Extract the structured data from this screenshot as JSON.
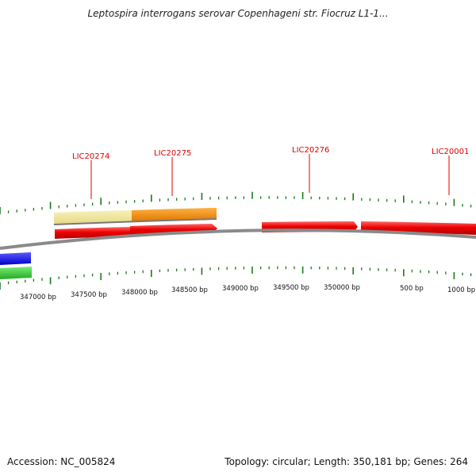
{
  "title": "Leptospira interrogans serovar Copenhageni str. Fiocruz L1-1...",
  "gene_labels": [
    {
      "name": "LIC20274"
    },
    {
      "name": "LIC20275"
    },
    {
      "name": "LIC20276"
    },
    {
      "name": "LIC20001"
    }
  ],
  "position_labels": [
    "347000 bp",
    "347500 bp",
    "348000 bp",
    "348500 bp",
    "349000 bp",
    "349500 bp",
    "350000 bp",
    "500 bp",
    "1000 bp"
  ],
  "footer": {
    "accession": "Accession: NC_005824",
    "topology": "Topology: circular; Length: 350,181 bp; Genes: 264"
  },
  "colors": {
    "gene_red": "#ee0000",
    "gc_light": "#eee49a",
    "gc_orange": "#ff8c00",
    "skew_blue": "#1a1aff",
    "skew_green": "#33cc33",
    "tick_green": "#1a7a1a",
    "backbone": "#888888",
    "label_red": "#dd0000"
  }
}
